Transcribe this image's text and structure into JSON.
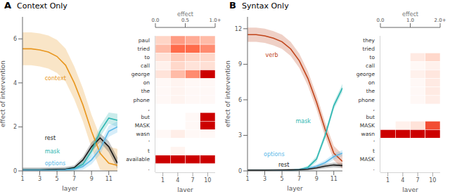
{
  "chart_data": [
    {
      "type": "line",
      "panel_label": "A",
      "title": "Context Only",
      "xlabel": "layer",
      "ylabel": "effect of intervention",
      "x": [
        1,
        2,
        3,
        4,
        5,
        6,
        7,
        8,
        9,
        10,
        11,
        12
      ],
      "series": [
        {
          "name": "context",
          "color": "#E8961E",
          "values": [
            5.55,
            5.55,
            5.5,
            5.4,
            5.2,
            4.8,
            4.0,
            3.0,
            1.8,
            0.8,
            0.35,
            0.25
          ],
          "upper": [
            6.3,
            6.3,
            6.25,
            6.15,
            5.95,
            5.55,
            4.75,
            3.75,
            2.55,
            1.55,
            1.1,
            1.0
          ],
          "lower": [
            4.8,
            4.8,
            4.75,
            4.65,
            4.45,
            4.05,
            3.25,
            2.25,
            1.05,
            0.05,
            0.0,
            0.0
          ]
        },
        {
          "name": "rest",
          "color": "#1a1a1a",
          "values": [
            0.05,
            0.05,
            0.05,
            0.06,
            0.07,
            0.08,
            0.15,
            0.5,
            1.1,
            1.5,
            1.1,
            0.35
          ],
          "upper": [
            0.15,
            0.15,
            0.15,
            0.16,
            0.17,
            0.18,
            0.25,
            0.65,
            1.3,
            1.7,
            1.35,
            0.6
          ],
          "lower": [
            0.0,
            0.0,
            0.0,
            0.0,
            0.0,
            0.0,
            0.05,
            0.35,
            0.9,
            1.3,
            0.85,
            0.1
          ]
        },
        {
          "name": "mask",
          "color": "#2ab5b0",
          "values": [
            0.02,
            0.02,
            0.02,
            0.02,
            0.03,
            0.05,
            0.1,
            0.3,
            0.9,
            1.8,
            2.4,
            2.3
          ],
          "upper": [
            0.1,
            0.1,
            0.1,
            0.1,
            0.11,
            0.13,
            0.2,
            0.45,
            1.1,
            2.05,
            2.65,
            2.6
          ],
          "lower": [
            0.0,
            0.0,
            0.0,
            0.0,
            0.0,
            0.0,
            0.02,
            0.15,
            0.7,
            1.55,
            2.15,
            2.0
          ]
        },
        {
          "name": "options",
          "color": "#5bb8e8",
          "values": [
            0.02,
            0.02,
            0.02,
            0.02,
            0.03,
            0.05,
            0.08,
            0.2,
            0.5,
            1.0,
            1.8,
            2.0
          ],
          "upper": [
            0.1,
            0.1,
            0.1,
            0.1,
            0.11,
            0.13,
            0.18,
            0.35,
            0.7,
            1.25,
            2.05,
            2.25
          ],
          "lower": [
            0.0,
            0.0,
            0.0,
            0.0,
            0.0,
            0.0,
            0.0,
            0.05,
            0.3,
            0.75,
            1.55,
            1.75
          ]
        }
      ],
      "xlim": [
        1,
        12
      ],
      "xticks": [
        1,
        3,
        5,
        7,
        9,
        11
      ],
      "ylim": [
        0,
        7
      ],
      "yticks": [
        0,
        2,
        4,
        6
      ],
      "annotations": [
        {
          "text": "context",
          "x": 3.5,
          "y": 4.2
        },
        {
          "text": "rest",
          "x": 3.5,
          "y": 1.5
        },
        {
          "text": "mask",
          "x": 3.5,
          "y": 0.9
        },
        {
          "text": "options",
          "x": 3.5,
          "y": 0.35
        }
      ]
    },
    {
      "type": "heatmap",
      "xlabel": "layer",
      "x": [
        1,
        4,
        7,
        10
      ],
      "categories": [
        "paul",
        "tried",
        "to",
        "call",
        "george",
        "on",
        "the",
        "phone",
        ",",
        "but",
        "MASK",
        "wasn",
        "'",
        "t",
        "available",
        "."
      ],
      "values": [
        [
          0.3,
          0.5,
          0.45,
          0.4
        ],
        [
          0.4,
          0.65,
          0.65,
          0.55
        ],
        [
          0.2,
          0.35,
          0.3,
          0.28
        ],
        [
          0.1,
          0.28,
          0.2,
          0.22
        ],
        [
          0.2,
          0.4,
          0.55,
          1.1
        ],
        [
          0.05,
          0.08,
          0.05,
          0.05
        ],
        [
          0.05,
          0.08,
          0.05,
          0.05
        ],
        [
          0.05,
          0.08,
          0.05,
          0.05
        ],
        [
          0.0,
          0.0,
          0.0,
          0.0
        ],
        [
          0.0,
          0.0,
          0.05,
          1.1
        ],
        [
          0.0,
          0.0,
          0.05,
          1.1
        ],
        [
          0.05,
          0.12,
          0.05,
          0.05
        ],
        [
          0.0,
          0.0,
          0.0,
          0.0
        ],
        [
          0.0,
          0.08,
          0.0,
          0.0
        ],
        [
          1.1,
          1.1,
          1.1,
          1.1
        ],
        [
          0.0,
          0.0,
          0.0,
          0.0
        ]
      ],
      "colorbar": {
        "title": "effect",
        "range": [
          0,
          1.0
        ],
        "ticks": [
          {
            "value": 0,
            "label": "0.0"
          },
          {
            "value": 0.5,
            "label": "0.5"
          },
          {
            "value": 1.0,
            "label": "1.0+"
          }
        ]
      }
    },
    {
      "type": "line",
      "panel_label": "B",
      "title": "Syntax Only",
      "xlabel": "layer",
      "ylabel": "effect of intervention",
      "x": [
        1,
        2,
        3,
        4,
        5,
        6,
        7,
        8,
        9,
        10,
        11,
        12
      ],
      "series": [
        {
          "name": "verb",
          "color": "#c0441a",
          "values": [
            11.5,
            11.5,
            11.4,
            11.2,
            10.9,
            10.3,
            9.3,
            7.8,
            5.8,
            3.5,
            1.5,
            0.8
          ],
          "upper": [
            12.1,
            12.1,
            12.0,
            11.8,
            11.5,
            10.9,
            9.9,
            8.4,
            6.4,
            4.1,
            2.1,
            1.4
          ],
          "lower": [
            10.9,
            10.9,
            10.8,
            10.6,
            10.3,
            9.7,
            8.7,
            7.2,
            5.2,
            2.9,
            0.9,
            0.2
          ]
        },
        {
          "name": "mask",
          "color": "#2ab5b0",
          "values": [
            0.02,
            0.02,
            0.02,
            0.02,
            0.03,
            0.05,
            0.1,
            0.3,
            1.0,
            3.0,
            5.5,
            7.0
          ],
          "upper": [
            0.1,
            0.1,
            0.1,
            0.1,
            0.11,
            0.13,
            0.2,
            0.45,
            1.25,
            3.3,
            5.8,
            7.35
          ],
          "lower": [
            0.0,
            0.0,
            0.0,
            0.0,
            0.0,
            0.0,
            0.02,
            0.15,
            0.75,
            2.7,
            5.2,
            6.65
          ]
        },
        {
          "name": "options",
          "color": "#5bb8e8",
          "values": [
            0.02,
            0.02,
            0.02,
            0.03,
            0.04,
            0.06,
            0.1,
            0.2,
            0.4,
            0.7,
            1.2,
            1.5
          ],
          "upper": [
            0.1,
            0.1,
            0.1,
            0.11,
            0.12,
            0.14,
            0.18,
            0.32,
            0.55,
            0.9,
            1.45,
            1.75
          ],
          "lower": [
            0.0,
            0.0,
            0.0,
            0.0,
            0.0,
            0.0,
            0.02,
            0.08,
            0.25,
            0.5,
            0.95,
            1.25
          ]
        },
        {
          "name": "rest",
          "color": "#1a1a1a",
          "values": [
            0.05,
            0.05,
            0.05,
            0.06,
            0.07,
            0.08,
            0.1,
            0.15,
            0.25,
            0.4,
            0.5,
            0.45
          ],
          "upper": [
            0.15,
            0.15,
            0.15,
            0.16,
            0.17,
            0.18,
            0.2,
            0.28,
            0.4,
            0.58,
            0.7,
            0.65
          ],
          "lower": [
            0.0,
            0.0,
            0.0,
            0.0,
            0.0,
            0.0,
            0.0,
            0.02,
            0.1,
            0.22,
            0.3,
            0.25
          ]
        }
      ],
      "xlim": [
        1,
        12
      ],
      "xticks": [
        1,
        3,
        5,
        7,
        9,
        11
      ],
      "ylim": [
        0,
        13
      ],
      "yticks": [
        0,
        3,
        6,
        9,
        12
      ],
      "annotations": [
        {
          "text": "verb",
          "x": 3.0,
          "y": 9.8
        },
        {
          "text": "mask",
          "x": 6.5,
          "y": 4.2
        },
        {
          "text": "options",
          "x": 2.8,
          "y": 1.4
        },
        {
          "text": "rest",
          "x": 4.5,
          "y": 0.5
        }
      ]
    },
    {
      "type": "heatmap",
      "xlabel": "layer",
      "x": [
        1,
        4,
        7,
        10
      ],
      "categories": [
        "they",
        "tried",
        "to",
        "call",
        "george",
        "on",
        "the",
        "phone",
        ",",
        "but",
        "MASK",
        "wasn",
        "'",
        "t",
        "MASK",
        "."
      ],
      "values": [
        [
          0.0,
          0.0,
          0.0,
          0.0
        ],
        [
          0.0,
          0.0,
          0.0,
          0.0
        ],
        [
          0.0,
          0.0,
          0.3,
          0.55
        ],
        [
          0.0,
          0.0,
          0.1,
          0.2
        ],
        [
          0.0,
          0.0,
          0.2,
          0.35
        ],
        [
          0.0,
          0.0,
          0.1,
          0.3
        ],
        [
          0.0,
          0.0,
          0.1,
          0.3
        ],
        [
          0.0,
          0.0,
          0.1,
          0.25
        ],
        [
          0.0,
          0.0,
          0.0,
          0.0
        ],
        [
          0.0,
          0.0,
          0.0,
          0.0
        ],
        [
          0.0,
          0.2,
          0.4,
          1.5
        ],
        [
          2.0,
          2.0,
          2.0,
          2.0
        ],
        [
          0.0,
          0.0,
          0.0,
          0.0
        ],
        [
          0.0,
          0.0,
          0.0,
          0.0
        ],
        [
          0.0,
          0.0,
          0.0,
          0.0
        ],
        [
          0.0,
          0.0,
          0.0,
          0.0
        ]
      ],
      "colorbar": {
        "title": "effect",
        "range": [
          0,
          2.0
        ],
        "ticks": [
          {
            "value": 0,
            "label": "0.0"
          },
          {
            "value": 1.0,
            "label": "1.0"
          },
          {
            "value": 2.0,
            "label": "2.0+"
          }
        ]
      }
    }
  ]
}
